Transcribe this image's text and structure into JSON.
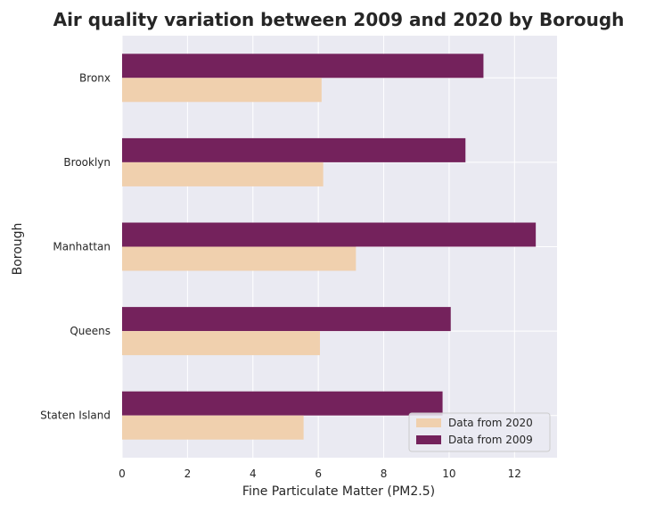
{
  "chart_data": {
    "type": "bar",
    "orientation": "horizontal",
    "title": "Air quality variation between 2009 and 2020 by Borough",
    "xlabel": "Fine Particulate Matter (PM2.5)",
    "ylabel": "Borough",
    "categories": [
      "Bronx",
      "Brooklyn",
      "Manhattan",
      "Queens",
      "Staten Island"
    ],
    "series": [
      {
        "name": "Data from 2009",
        "values": [
          11.05,
          10.5,
          12.65,
          10.05,
          9.8
        ],
        "color": "#74225c"
      },
      {
        "name": "Data from 2020",
        "values": [
          6.1,
          6.15,
          7.15,
          6.05,
          5.55
        ],
        "color": "#f0d0ae"
      }
    ],
    "xlim": [
      0,
      13.3
    ],
    "xticks": [
      0,
      2,
      4,
      6,
      8,
      10,
      12
    ],
    "grid": true,
    "legend_position": "lower-right",
    "legend_order": [
      "Data from 2020",
      "Data from 2009"
    ],
    "background_color": "#eaeaf2"
  }
}
